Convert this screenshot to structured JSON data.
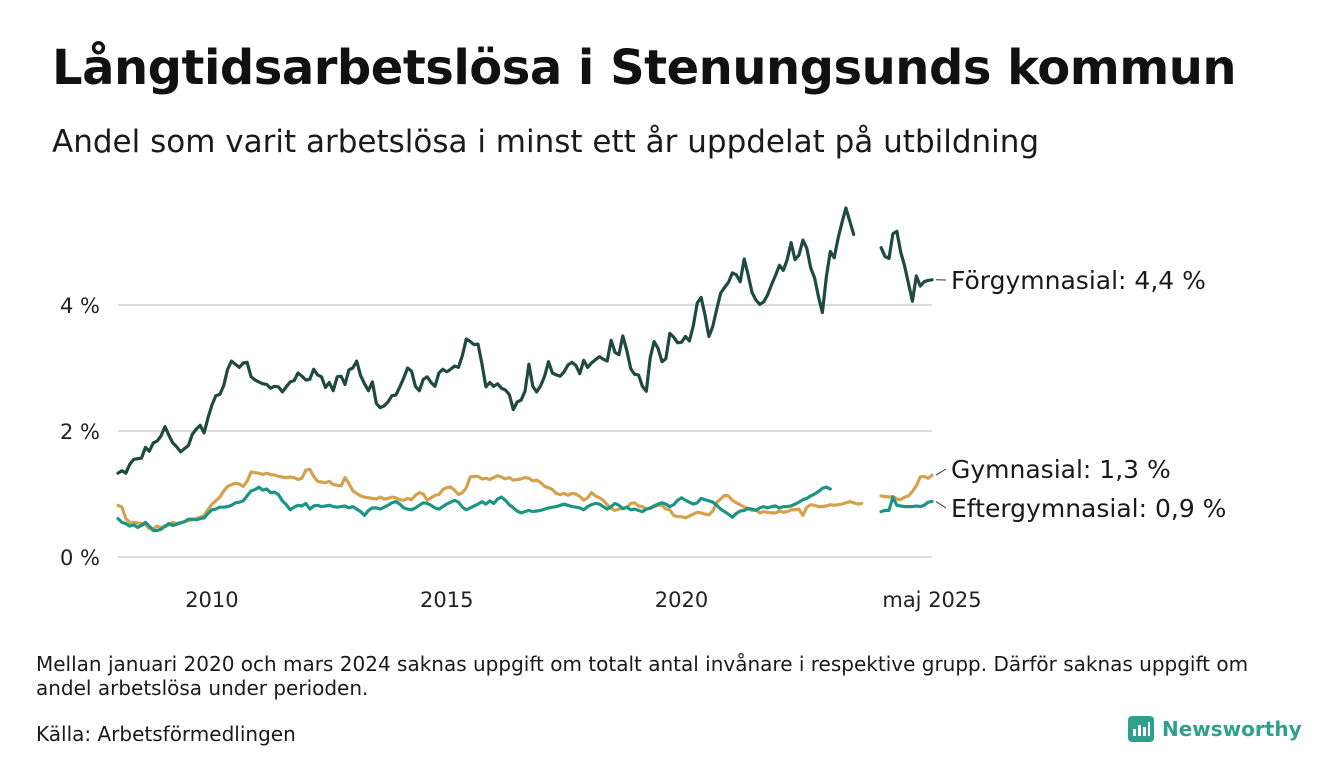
{
  "title": "Långtidsarbetslösa i Stenungsunds kommun",
  "subtitle": "Andel som varit arbetslösa i minst ett år uppdelat på utbildning",
  "note": "Mellan januari 2020 och mars 2024 saknas uppgift om totalt antal invånare i respektive grupp. Därför saknas uppgift om andel arbetslösa under perioden.",
  "source": "Källa: Arbetsförmedlingen",
  "brand": {
    "name": "Newsworthy",
    "icon": "newsworthy-logo-icon"
  },
  "chart_data": {
    "type": "line",
    "xlabel": "",
    "ylabel": "",
    "ylim": [
      0,
      5.6
    ],
    "grid": true,
    "y_ticks": [
      {
        "value": 0,
        "label": "0 %"
      },
      {
        "value": 2,
        "label": "2 %"
      },
      {
        "value": 4,
        "label": "4 %"
      }
    ],
    "x_ticks": [
      {
        "value": "2010-01",
        "label": "2010"
      },
      {
        "value": "2015-01",
        "label": "2015"
      },
      {
        "value": "2020-01",
        "label": "2020"
      },
      {
        "value": "2025-05",
        "label": "maj 2025"
      }
    ],
    "series": [
      {
        "name": "Förgymnasial",
        "end_label": "Förgymnasial: 4,4 %",
        "color": "#1f4a40",
        "segments": [
          {
            "start": "2008-01",
            "values": [
              1.33,
              1.37,
              1.33,
              1.47,
              1.55,
              1.56,
              1.57,
              1.74,
              1.68,
              1.81,
              1.84,
              1.92,
              2.07,
              1.93,
              1.81,
              1.75,
              1.67,
              1.72,
              1.77,
              1.95,
              2.03,
              2.09,
              1.97,
              2.21,
              2.41,
              2.56,
              2.58,
              2.72,
              2.98,
              3.11,
              3.06,
              3.01,
              3.08,
              3.09,
              2.86,
              2.81,
              2.78,
              2.75,
              2.74,
              2.68,
              2.71,
              2.7,
              2.62,
              2.7,
              2.78,
              2.8,
              2.92,
              2.87,
              2.81,
              2.82,
              2.98,
              2.89,
              2.86,
              2.69,
              2.77,
              2.64,
              2.86,
              2.87,
              2.74,
              2.97,
              3.0,
              3.11,
              2.88,
              2.75,
              2.64,
              2.78,
              2.44,
              2.37,
              2.4,
              2.46,
              2.56,
              2.57,
              2.7,
              2.84,
              3.0,
              2.95,
              2.71,
              2.64,
              2.82,
              2.86,
              2.77,
              2.71,
              2.92,
              2.98,
              2.94,
              2.98,
              3.03,
              3.01,
              3.2,
              3.46,
              3.42,
              3.37,
              3.38,
              3.06,
              2.7,
              2.77,
              2.71,
              2.75,
              2.68,
              2.65,
              2.58,
              2.34,
              2.46,
              2.49,
              2.63,
              3.06,
              2.71,
              2.62,
              2.72,
              2.87,
              3.1,
              2.92,
              2.89,
              2.87,
              2.94,
              3.05,
              3.09,
              3.04,
              2.91,
              3.12,
              3.01,
              3.08,
              3.13,
              3.18,
              3.14,
              3.11,
              3.44,
              3.25,
              3.21,
              3.51,
              3.28,
              2.99,
              2.9,
              2.89,
              2.71,
              2.63,
              3.16,
              3.42,
              3.31,
              3.1,
              3.15,
              3.55,
              3.49,
              3.4,
              3.41,
              3.5,
              3.43,
              3.67,
              4.03,
              4.12,
              3.84,
              3.5,
              3.66,
              3.94,
              4.19,
              4.28,
              4.36,
              4.51,
              4.48,
              4.37,
              4.73,
              4.48,
              4.2,
              4.08,
              4.01,
              4.05,
              4.16,
              4.32,
              4.47,
              4.63,
              4.55,
              4.72,
              4.99,
              4.72,
              4.79,
              5.03,
              4.9,
              4.59,
              4.43,
              4.13,
              3.88,
              4.44,
              4.85,
              4.75,
              5.06,
              5.31,
              5.54,
              5.33,
              5.12
            ]
          },
          {
            "start": "2024-04",
            "values": [
              4.91,
              4.77,
              4.74,
              5.13,
              5.17,
              4.84,
              4.62,
              4.34,
              4.06,
              4.46,
              4.3,
              4.37,
              4.39,
              4.4
            ]
          }
        ]
      },
      {
        "name": "Gymnasial",
        "end_label": "Gymnasial: 1,3 %",
        "color": "#d4a24e",
        "segments": [
          {
            "start": "2008-01",
            "values": [
              0.82,
              0.79,
              0.61,
              0.55,
              0.55,
              0.54,
              0.53,
              0.51,
              0.45,
              0.45,
              0.49,
              0.47,
              0.48,
              0.51,
              0.55,
              0.53,
              0.55,
              0.56,
              0.58,
              0.59,
              0.61,
              0.63,
              0.66,
              0.75,
              0.84,
              0.89,
              0.95,
              1.05,
              1.12,
              1.15,
              1.17,
              1.16,
              1.12,
              1.2,
              1.35,
              1.34,
              1.33,
              1.31,
              1.33,
              1.31,
              1.3,
              1.28,
              1.27,
              1.26,
              1.27,
              1.26,
              1.23,
              1.25,
              1.38,
              1.39,
              1.28,
              1.2,
              1.19,
              1.18,
              1.2,
              1.15,
              1.14,
              1.13,
              1.26,
              1.17,
              1.05,
              1.01,
              0.97,
              0.95,
              0.94,
              0.93,
              0.92,
              0.95,
              0.92,
              0.93,
              0.95,
              0.94,
              0.91,
              0.9,
              0.93,
              0.91,
              0.98,
              1.02,
              1.0,
              0.9,
              0.94,
              0.98,
              0.99,
              1.07,
              1.1,
              1.11,
              1.06,
              0.99,
              1.02,
              1.1,
              1.27,
              1.28,
              1.28,
              1.24,
              1.25,
              1.23,
              1.26,
              1.29,
              1.27,
              1.24,
              1.26,
              1.22,
              1.23,
              1.24,
              1.26,
              1.25,
              1.21,
              1.22,
              1.18,
              1.12,
              1.1,
              1.07,
              1.01,
              0.99,
              1.01,
              0.98,
              1.01,
              1.0,
              0.96,
              0.9,
              0.94,
              1.02,
              0.97,
              0.94,
              0.9,
              0.83,
              0.77,
              0.74,
              0.76,
              0.77,
              0.78,
              0.85,
              0.86,
              0.81,
              0.8,
              0.76,
              0.77,
              0.8,
              0.82,
              0.82,
              0.76,
              0.75,
              0.66,
              0.64,
              0.64,
              0.62,
              0.65,
              0.68,
              0.71,
              0.7,
              0.68,
              0.67,
              0.73,
              0.87,
              0.92,
              0.98,
              0.97,
              0.9,
              0.86,
              0.83,
              0.79,
              0.77,
              0.74,
              0.75,
              0.7,
              0.72,
              0.71,
              0.7,
              0.7,
              0.73,
              0.71,
              0.72,
              0.75,
              0.75,
              0.76,
              0.66,
              0.79,
              0.83,
              0.82,
              0.8,
              0.8,
              0.81,
              0.83,
              0.82,
              0.83,
              0.84,
              0.86,
              0.88,
              0.86,
              0.84,
              0.85
            ]
          },
          {
            "start": "2024-04",
            "values": [
              0.97,
              0.96,
              0.95,
              0.96,
              0.92,
              0.91,
              0.95,
              0.97,
              1.04,
              1.13,
              1.27,
              1.28,
              1.25,
              1.3
            ]
          }
        ]
      },
      {
        "name": "Eftergymnasial",
        "end_label": "Eftergymnasial: 0,9 %",
        "color": "#1d9585",
        "segments": [
          {
            "start": "2008-01",
            "values": [
              0.61,
              0.55,
              0.53,
              0.49,
              0.51,
              0.47,
              0.5,
              0.55,
              0.49,
              0.42,
              0.42,
              0.44,
              0.49,
              0.53,
              0.5,
              0.52,
              0.54,
              0.56,
              0.6,
              0.6,
              0.59,
              0.61,
              0.62,
              0.69,
              0.75,
              0.76,
              0.79,
              0.79,
              0.8,
              0.82,
              0.86,
              0.87,
              0.89,
              0.97,
              1.05,
              1.07,
              1.11,
              1.06,
              1.08,
              1.02,
              1.03,
              0.99,
              0.89,
              0.83,
              0.75,
              0.79,
              0.82,
              0.81,
              0.85,
              0.76,
              0.81,
              0.82,
              0.8,
              0.81,
              0.82,
              0.8,
              0.79,
              0.8,
              0.81,
              0.78,
              0.8,
              0.76,
              0.72,
              0.66,
              0.74,
              0.78,
              0.78,
              0.76,
              0.79,
              0.82,
              0.86,
              0.88,
              0.84,
              0.78,
              0.76,
              0.75,
              0.78,
              0.82,
              0.86,
              0.85,
              0.82,
              0.78,
              0.76,
              0.8,
              0.84,
              0.87,
              0.9,
              0.87,
              0.79,
              0.75,
              0.78,
              0.81,
              0.84,
              0.88,
              0.84,
              0.89,
              0.85,
              0.92,
              0.95,
              0.9,
              0.83,
              0.78,
              0.73,
              0.7,
              0.72,
              0.74,
              0.72,
              0.73,
              0.74,
              0.76,
              0.78,
              0.79,
              0.8,
              0.82,
              0.84,
              0.82,
              0.8,
              0.79,
              0.78,
              0.75,
              0.8,
              0.83,
              0.85,
              0.84,
              0.8,
              0.76,
              0.8,
              0.85,
              0.82,
              0.77,
              0.79,
              0.75,
              0.76,
              0.74,
              0.72,
              0.76,
              0.78,
              0.81,
              0.84,
              0.86,
              0.84,
              0.8,
              0.83,
              0.9,
              0.94,
              0.9,
              0.87,
              0.84,
              0.86,
              0.93,
              0.91,
              0.89,
              0.87,
              0.82,
              0.76,
              0.72,
              0.68,
              0.63,
              0.69,
              0.73,
              0.74,
              0.77,
              0.76,
              0.74,
              0.78,
              0.8,
              0.78,
              0.8,
              0.81,
              0.78,
              0.8,
              0.8,
              0.81,
              0.84,
              0.87,
              0.91,
              0.93,
              0.97,
              1.0,
              1.04,
              1.09,
              1.11,
              1.08
            ]
          },
          {
            "start": "2024-04",
            "values": [
              0.72,
              0.74,
              0.74,
              0.95,
              0.82,
              0.81,
              0.8,
              0.8,
              0.8,
              0.81,
              0.8,
              0.82,
              0.87,
              0.88
            ]
          }
        ]
      }
    ]
  }
}
